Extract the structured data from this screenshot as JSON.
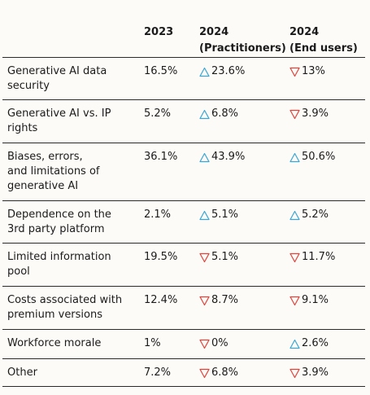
{
  "table": {
    "headers": [
      {
        "line1": "",
        "line2": ""
      },
      {
        "line1": "2023",
        "line2": ""
      },
      {
        "line1": "2024",
        "line2": "(Practitioners)"
      },
      {
        "line1": "2024",
        "line2": "(End users)"
      }
    ],
    "rows": [
      {
        "label": "Generative AI data\nsecurity",
        "y2023": "16.5%",
        "practitioners": {
          "value": "23.6%",
          "trend": "up"
        },
        "end_users": {
          "value": "13%",
          "trend": "down"
        }
      },
      {
        "label": "Generative AI vs. IP\nrights",
        "y2023": "5.2%",
        "practitioners": {
          "value": "6.8%",
          "trend": "up"
        },
        "end_users": {
          "value": "3.9%",
          "trend": "down"
        }
      },
      {
        "label": "Biases, errors,\nand limitations of\ngenerative AI",
        "y2023": "36.1%",
        "practitioners": {
          "value": "43.9%",
          "trend": "up"
        },
        "end_users": {
          "value": "50.6%",
          "trend": "up"
        }
      },
      {
        "label": "Dependence on the\n3rd party platform",
        "y2023": "2.1%",
        "practitioners": {
          "value": "5.1%",
          "trend": "up"
        },
        "end_users": {
          "value": "5.2%",
          "trend": "up"
        }
      },
      {
        "label": "Limited information\npool",
        "y2023": "19.5%",
        "practitioners": {
          "value": "5.1%",
          "trend": "down"
        },
        "end_users": {
          "value": "11.7%",
          "trend": "down"
        }
      },
      {
        "label": "Costs associated with\npremium versions",
        "y2023": "12.4%",
        "practitioners": {
          "value": "8.7%",
          "trend": "down"
        },
        "end_users": {
          "value": "9.1%",
          "trend": "down"
        }
      },
      {
        "label": "Workforce morale",
        "y2023": "1%",
        "practitioners": {
          "value": "0%",
          "trend": "down"
        },
        "end_users": {
          "value": "2.6%",
          "trend": "up"
        }
      },
      {
        "label": "Other",
        "y2023": "7.2%",
        "practitioners": {
          "value": "6.8%",
          "trend": "down"
        },
        "end_users": {
          "value": "3.9%",
          "trend": "down"
        }
      }
    ]
  },
  "icons": {
    "up": "triangle-up-icon",
    "down": "triangle-down-icon"
  },
  "colors": {
    "up": "#3aa6d4",
    "down": "#e0433b",
    "background": "#fdfbf8",
    "text": "#1b1b1b"
  }
}
